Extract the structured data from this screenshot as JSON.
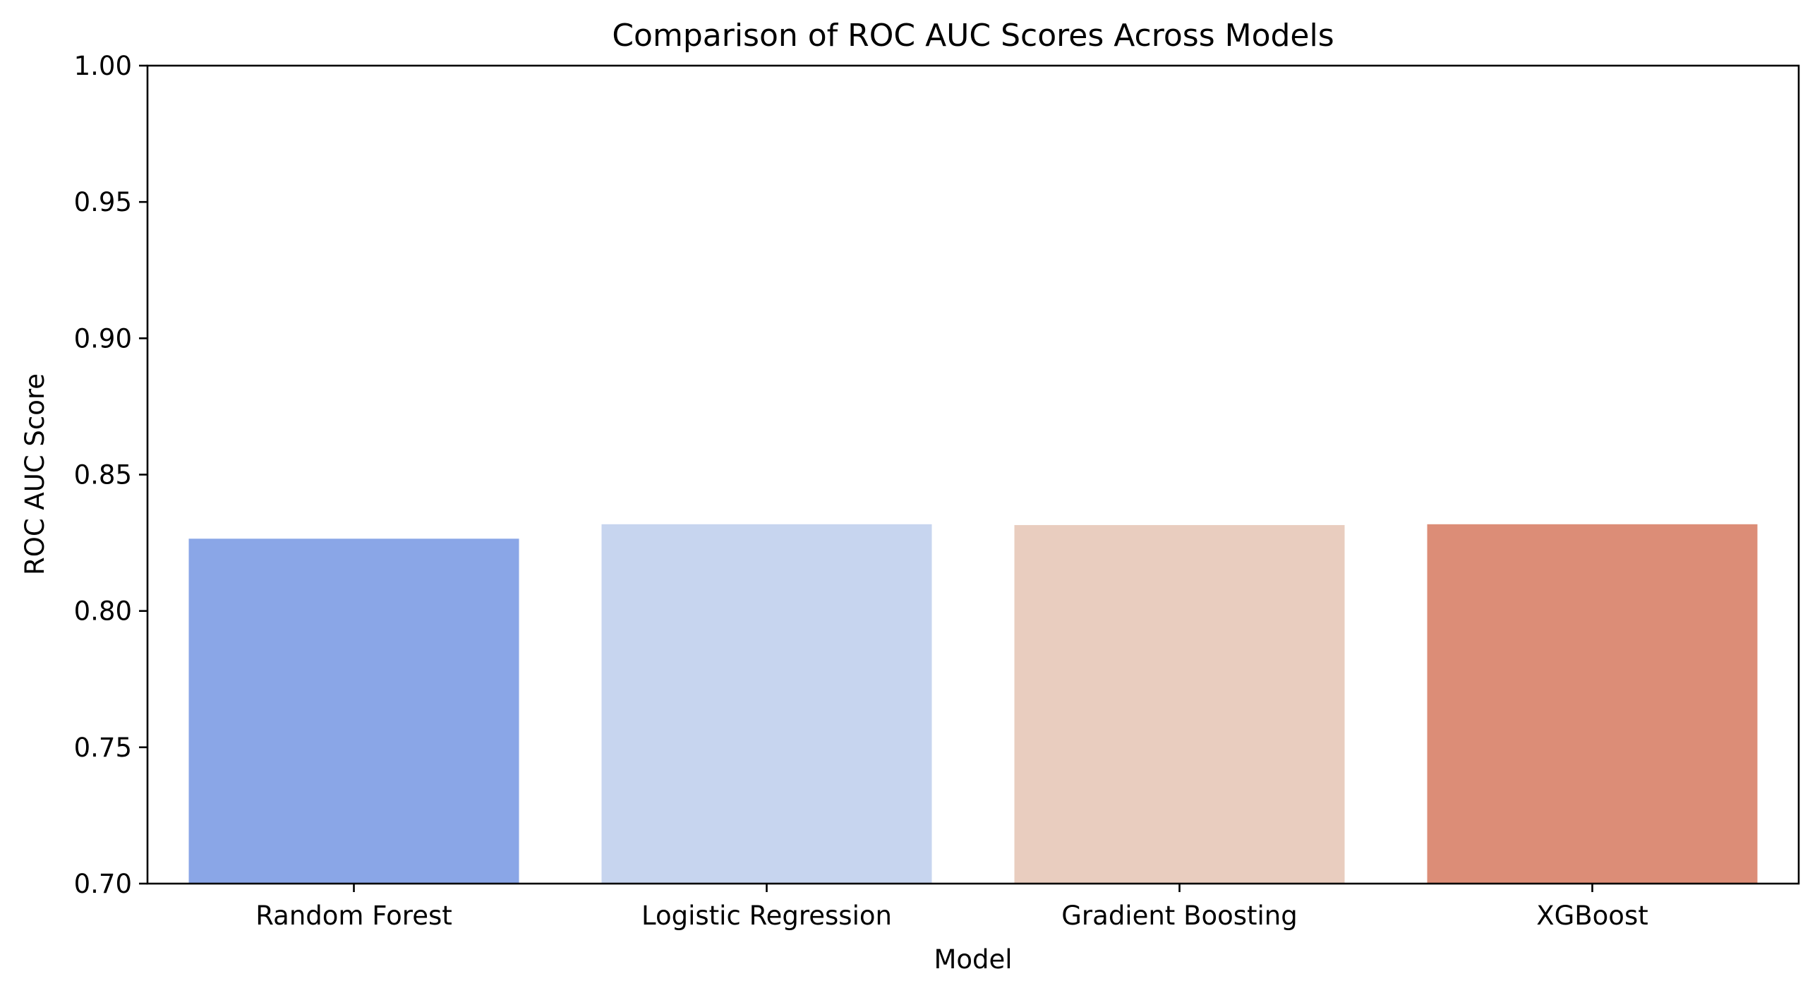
{
  "chart_data": {
    "type": "bar",
    "title": "Comparison of ROC AUC Scores Across Models",
    "xlabel": "Model",
    "ylabel": "ROC AUC Score",
    "categories": [
      "Random Forest",
      "Logistic Regression",
      "Gradient Boosting",
      "XGBoost"
    ],
    "values": [
      0.8265,
      0.8318,
      0.8315,
      0.8318
    ],
    "colors": [
      "#8aa6e7",
      "#c7d5ef",
      "#e9cdbf",
      "#dc8d77"
    ],
    "ylim": [
      0.7,
      1.0
    ],
    "yticks": [
      "0.70",
      "0.75",
      "0.80",
      "0.85",
      "0.90",
      "0.95",
      "1.00"
    ],
    "grid": false,
    "legend": "none"
  }
}
